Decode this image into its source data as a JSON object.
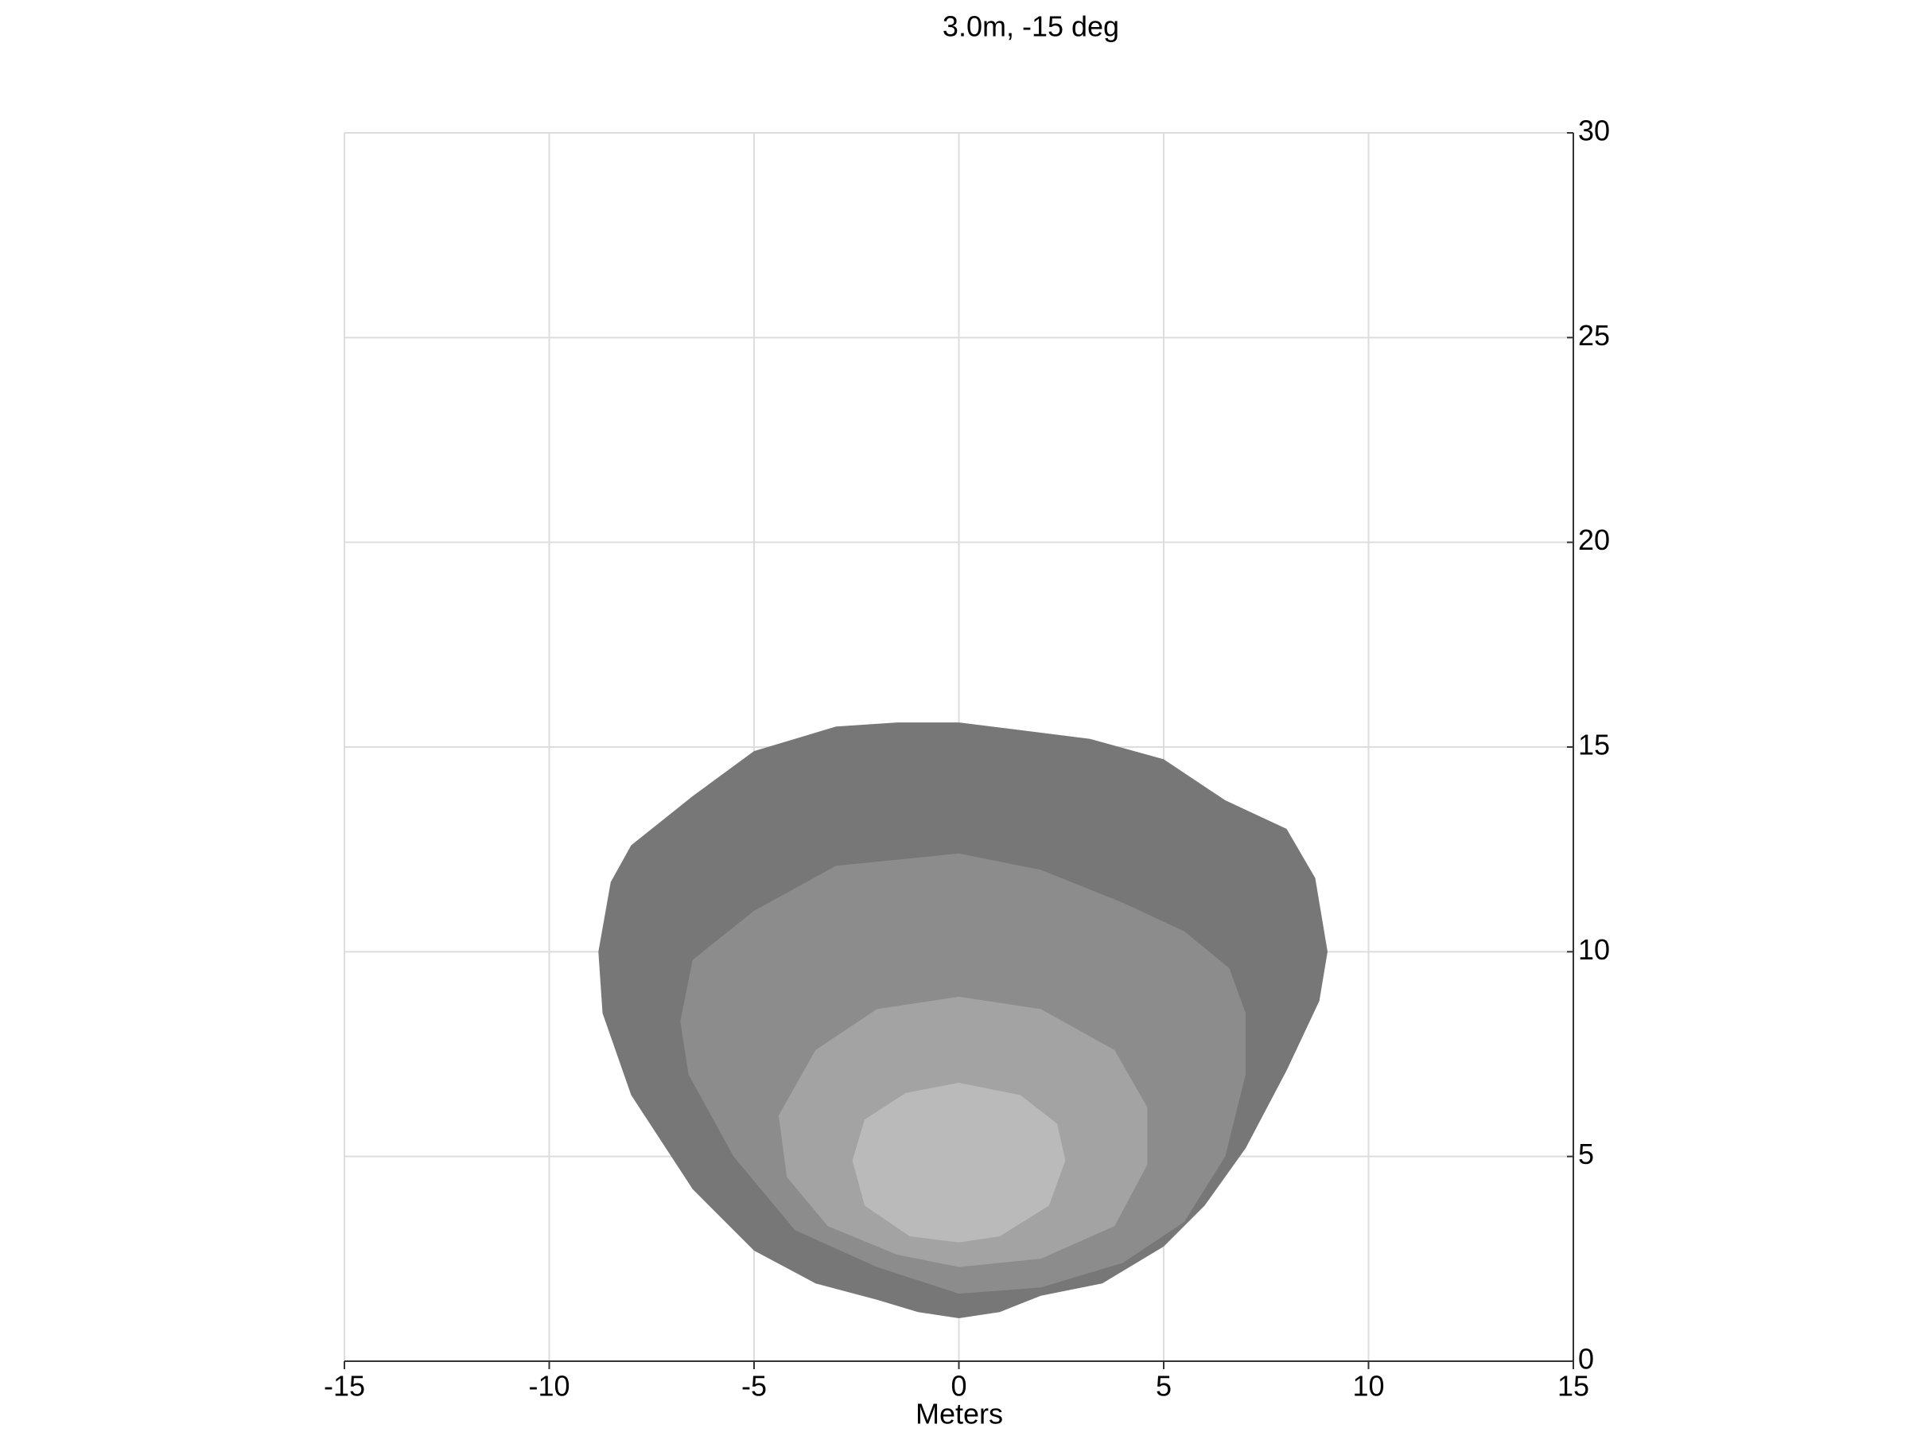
{
  "chart_data": {
    "type": "contour",
    "title": "3.0m, -15 deg",
    "xlabel": "Meters",
    "xlim": [
      -15,
      15
    ],
    "ylim": [
      0,
      30
    ],
    "xticks": [
      -15,
      -10,
      -5,
      0,
      5,
      10,
      15
    ],
    "yticks": [
      0,
      5,
      10,
      15,
      20,
      25,
      30
    ],
    "grid": true,
    "y_axis_side": "right",
    "series": [
      {
        "color": "#777777",
        "x": [
          0,
          3.2,
          5,
          6.5,
          8,
          8.7,
          9,
          8.8,
          8,
          7,
          6,
          5,
          3.5,
          2,
          1,
          0,
          -1,
          -2,
          -3.5,
          -5,
          -6.5,
          -8,
          -8.7,
          -8.8,
          -8.5,
          -8,
          -6.5,
          -5,
          -3,
          -1.5
        ],
        "y": [
          15.6,
          15.2,
          14.7,
          13.7,
          13,
          11.8,
          10,
          8.8,
          7.1,
          5.2,
          3.8,
          2.8,
          1.9,
          1.6,
          1.2,
          1.05,
          1.2,
          1.5,
          1.9,
          2.7,
          4.2,
          6.5,
          8.5,
          10,
          11.7,
          12.6,
          13.8,
          14.9,
          15.5,
          15.6
        ]
      },
      {
        "color": "#8c8c8c",
        "x": [
          0,
          -3,
          -5,
          -6.5,
          -6.8,
          -6.6,
          -5.5,
          -4,
          -2,
          0,
          2,
          4,
          5.5,
          6.5,
          7,
          7,
          6.6,
          5.5,
          4,
          2
        ],
        "y": [
          12.4,
          12.1,
          11,
          9.8,
          8.3,
          7,
          5,
          3.2,
          2.3,
          1.65,
          1.8,
          2.4,
          3.4,
          5,
          7,
          8.5,
          9.6,
          10.5,
          11.2,
          12
        ]
      },
      {
        "color": "#a3a3a3",
        "x": [
          0,
          -2,
          -3.5,
          -4.4,
          -4.2,
          -3.2,
          -1.5,
          0,
          2,
          3.8,
          4.6,
          4.6,
          3.8,
          2
        ],
        "y": [
          8.9,
          8.6,
          7.6,
          6,
          4.5,
          3.3,
          2.6,
          2.3,
          2.5,
          3.3,
          4.8,
          6.2,
          7.6,
          8.6
        ]
      },
      {
        "color": "#bababa",
        "x": [
          0,
          1.5,
          2.4,
          2.6,
          2.2,
          1,
          0,
          -1.2,
          -2.3,
          -2.6,
          -2.3,
          -1.3
        ],
        "y": [
          6.8,
          6.5,
          5.8,
          4.9,
          3.8,
          3.05,
          2.9,
          3.05,
          3.8,
          4.9,
          5.9,
          6.55
        ]
      }
    ]
  }
}
